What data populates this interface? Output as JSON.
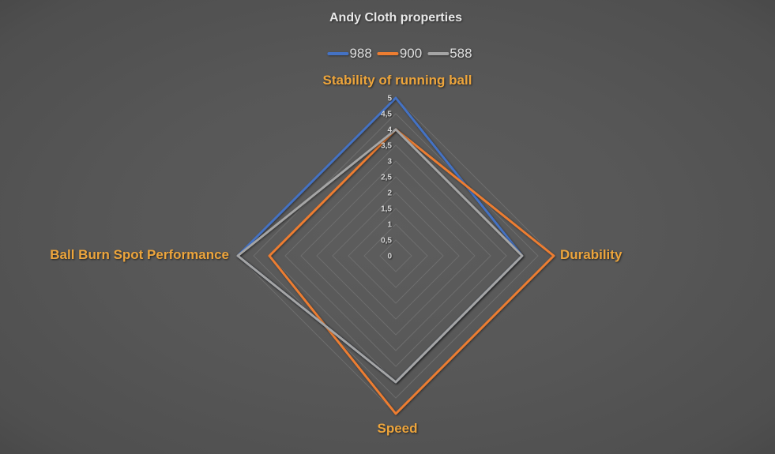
{
  "chart_data": {
    "type": "radar",
    "title": "Andy Cloth properties",
    "categories": [
      "Stability of running ball",
      "Durability",
      "Speed",
      "Ball Burn Spot Performance"
    ],
    "series": [
      {
        "name": "988",
        "color": "#4472C4",
        "values": [
          5,
          4,
          4,
          5
        ]
      },
      {
        "name": "900",
        "color": "#ED7D31",
        "values": [
          4,
          5,
          5,
          4
        ]
      },
      {
        "name": "588",
        "color": "#A5A5A5",
        "values": [
          4,
          4,
          4,
          5
        ]
      }
    ],
    "axis": {
      "min": 0,
      "max": 5,
      "step": 0.5,
      "tick_labels": [
        "0",
        "0,5",
        "1",
        "1,5",
        "2",
        "2,5",
        "3",
        "3,5",
        "4",
        "4,5",
        "5"
      ]
    },
    "legend_position": "top",
    "grid": true,
    "colors": {
      "category_label": "#EDA53C",
      "tick_label": "#D6D6D6",
      "gridline": "#747474",
      "title_text": "#E8E8E8",
      "legend_text": "#DEDEDE"
    }
  }
}
